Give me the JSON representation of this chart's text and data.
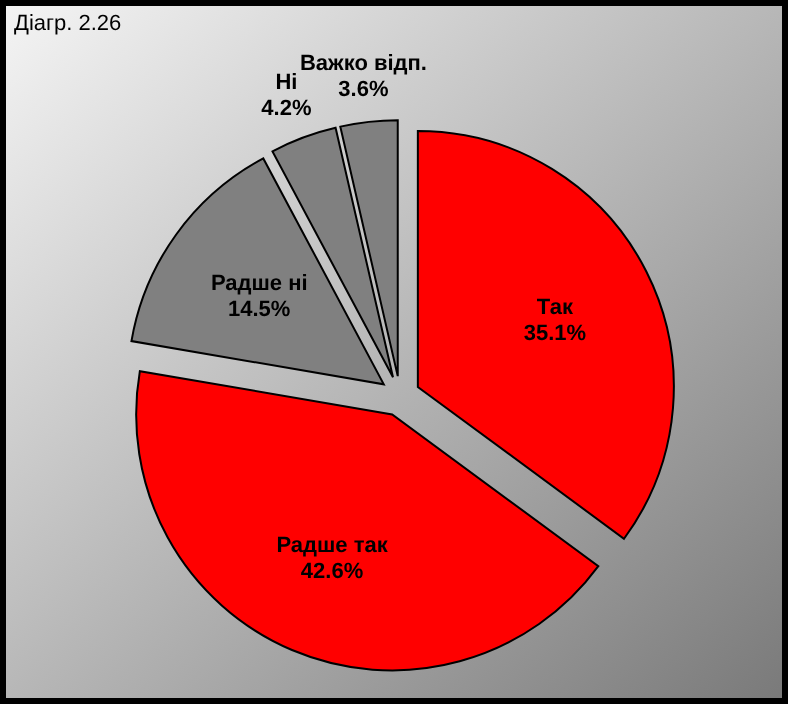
{
  "chart_data": {
    "type": "pie",
    "title": "Діагр. 2.26",
    "categories": [
      "Так",
      "Радше так",
      "Радше ні",
      "Ні",
      "Важко відп."
    ],
    "values": [
      35.1,
      42.6,
      14.5,
      4.2,
      3.6
    ],
    "value_labels": [
      "35.1%",
      "42.6%",
      "14.5%",
      "4.2%",
      "3.6%"
    ],
    "colors": [
      "#ff0000",
      "#ff0000",
      "#808080",
      "#808080",
      "#808080"
    ]
  }
}
